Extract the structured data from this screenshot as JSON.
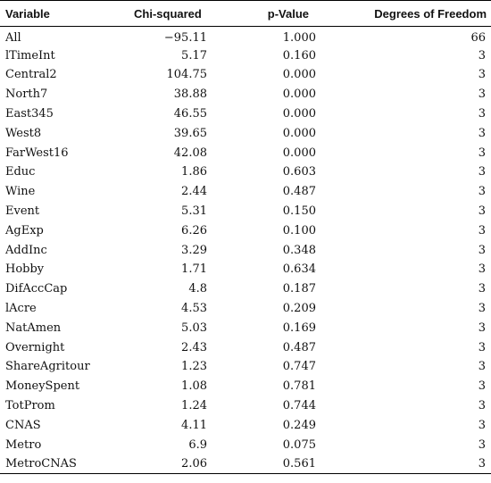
{
  "table": {
    "headers": {
      "variable": "Variable",
      "chi_squared": "Chi-squared",
      "p_value": "p-Value",
      "df": "Degrees of Freedom"
    },
    "rows": [
      {
        "variable": "All",
        "chi_squared": "−95.11",
        "p_value": "1.000",
        "df": "66"
      },
      {
        "variable": "lTimeInt",
        "chi_squared": "5.17",
        "p_value": "0.160",
        "df": "3"
      },
      {
        "variable": "Central2",
        "chi_squared": "104.75",
        "p_value": "0.000",
        "df": "3"
      },
      {
        "variable": "North7",
        "chi_squared": "38.88",
        "p_value": "0.000",
        "df": "3"
      },
      {
        "variable": "East345",
        "chi_squared": "46.55",
        "p_value": "0.000",
        "df": "3"
      },
      {
        "variable": "West8",
        "chi_squared": "39.65",
        "p_value": "0.000",
        "df": "3"
      },
      {
        "variable": "FarWest16",
        "chi_squared": "42.08",
        "p_value": "0.000",
        "df": "3"
      },
      {
        "variable": "Educ",
        "chi_squared": "1.86",
        "p_value": "0.603",
        "df": "3"
      },
      {
        "variable": "Wine",
        "chi_squared": "2.44",
        "p_value": "0.487",
        "df": "3"
      },
      {
        "variable": "Event",
        "chi_squared": "5.31",
        "p_value": "0.150",
        "df": "3"
      },
      {
        "variable": "AgExp",
        "chi_squared": "6.26",
        "p_value": "0.100",
        "df": "3"
      },
      {
        "variable": "AddInc",
        "chi_squared": "3.29",
        "p_value": "0.348",
        "df": "3"
      },
      {
        "variable": "Hobby",
        "chi_squared": "1.71",
        "p_value": "0.634",
        "df": "3"
      },
      {
        "variable": "DifAccCap",
        "chi_squared": "4.8",
        "p_value": "0.187",
        "df": "3"
      },
      {
        "variable": "lAcre",
        "chi_squared": "4.53",
        "p_value": "0.209",
        "df": "3"
      },
      {
        "variable": "NatAmen",
        "chi_squared": "5.03",
        "p_value": "0.169",
        "df": "3"
      },
      {
        "variable": "Overnight",
        "chi_squared": "2.43",
        "p_value": "0.487",
        "df": "3"
      },
      {
        "variable": "ShareAgritour",
        "chi_squared": "1.23",
        "p_value": "0.747",
        "df": "3"
      },
      {
        "variable": "MoneySpent",
        "chi_squared": "1.08",
        "p_value": "0.781",
        "df": "3"
      },
      {
        "variable": "TotProm",
        "chi_squared": "1.24",
        "p_value": "0.744",
        "df": "3"
      },
      {
        "variable": "CNAS",
        "chi_squared": "4.11",
        "p_value": "0.249",
        "df": "3"
      },
      {
        "variable": "Metro",
        "chi_squared": "6.9",
        "p_value": "0.075",
        "df": "3"
      },
      {
        "variable": "MetroCNAS",
        "chi_squared": "2.06",
        "p_value": "0.561",
        "df": "3"
      }
    ]
  }
}
